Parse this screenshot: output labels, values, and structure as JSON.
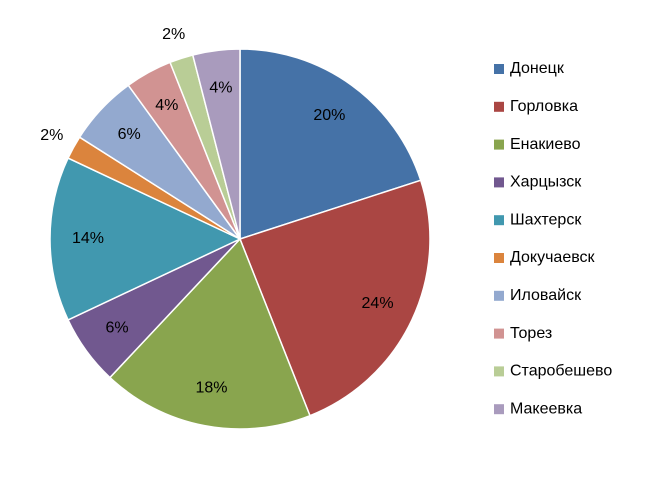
{
  "chart_data": {
    "type": "pie",
    "categories": [
      "Донецк",
      "Горловка",
      "Енакиево",
      "Харцызск",
      "Шахтерск",
      "Докучаевск",
      "Иловайск",
      "Торез",
      "Старобешево",
      "Макеевка"
    ],
    "values": [
      20,
      24,
      18,
      6,
      14,
      2,
      6,
      4,
      2,
      4
    ],
    "value_labels": [
      "20%",
      "24%",
      "18%",
      "6%",
      "14%",
      "2%",
      "6%",
      "4%",
      "2%",
      "4%"
    ],
    "colors": [
      "#4572a7",
      "#aa4643",
      "#89a54e",
      "#71588f",
      "#4198af",
      "#db843d",
      "#93a9cf",
      "#d19392",
      "#b9cd96",
      "#a99bbd"
    ],
    "legend": "right"
  }
}
